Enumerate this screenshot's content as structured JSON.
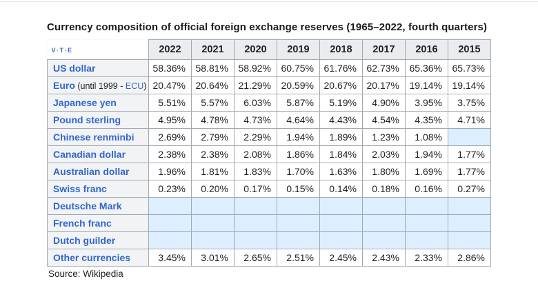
{
  "page": {
    "title": "Currency composition of official foreign exchange reserves (1965–2022, fourth quarters)",
    "source": "Source: Wikipedia"
  },
  "navbar": {
    "links": [
      "v",
      "t",
      "e"
    ],
    "separator": "·"
  },
  "colors": {
    "link_blue": "#3366cc",
    "header_bg": "#eaecf0",
    "row_label_bg": "#f1f3f5",
    "cell_bg": "#ffffff",
    "empty_cell_bg": "#ddeeff",
    "border": "#a2a9b1",
    "text": "#202122"
  },
  "chart_data": {
    "type": "table",
    "title": "Currency composition of official foreign exchange reserves (1965–2022, fourth quarters)",
    "columns": [
      "2022",
      "2021",
      "2020",
      "2019",
      "2018",
      "2017",
      "2016",
      "2015"
    ],
    "rows": [
      {
        "label": "US dollar",
        "values": [
          "58.36%",
          "58.81%",
          "58.92%",
          "60.75%",
          "61.76%",
          "62.73%",
          "65.36%",
          "65.73%"
        ]
      },
      {
        "label": "Euro",
        "suffix": [
          {
            "text": " (until 1999 - ",
            "link": false
          },
          {
            "text": "ECU",
            "link": true
          },
          {
            "text": ")",
            "link": false
          }
        ],
        "values": [
          "20.47%",
          "20.64%",
          "21.29%",
          "20.59%",
          "20.67%",
          "20.17%",
          "19.14%",
          "19.14%"
        ]
      },
      {
        "label": "Japanese yen",
        "values": [
          "5.51%",
          "5.57%",
          "6.03%",
          "5.87%",
          "5.19%",
          "4.90%",
          "3.95%",
          "3.75%"
        ]
      },
      {
        "label": "Pound sterling",
        "values": [
          "4.95%",
          "4.78%",
          "4.73%",
          "4.64%",
          "4.43%",
          "4.54%",
          "4.35%",
          "4.71%"
        ]
      },
      {
        "label": "Chinese renminbi",
        "values": [
          "2.69%",
          "2.79%",
          "2.29%",
          "1.94%",
          "1.89%",
          "1.23%",
          "1.08%",
          ""
        ]
      },
      {
        "label": "Canadian dollar",
        "values": [
          "2.38%",
          "2.38%",
          "2.08%",
          "1.86%",
          "1.84%",
          "2.03%",
          "1.94%",
          "1.77%"
        ]
      },
      {
        "label": "Australian dollar",
        "values": [
          "1.96%",
          "1.81%",
          "1.83%",
          "1.70%",
          "1.63%",
          "1.80%",
          "1.69%",
          "1.77%"
        ]
      },
      {
        "label": "Swiss franc",
        "values": [
          "0.23%",
          "0.20%",
          "0.17%",
          "0.15%",
          "0.14%",
          "0.18%",
          "0.16%",
          "0.27%"
        ]
      },
      {
        "label": "Deutsche Mark",
        "values": [
          "",
          "",
          "",
          "",
          "",
          "",
          "",
          ""
        ]
      },
      {
        "label": "French franc",
        "values": [
          "",
          "",
          "",
          "",
          "",
          "",
          "",
          ""
        ]
      },
      {
        "label": "Dutch guilder",
        "values": [
          "",
          "",
          "",
          "",
          "",
          "",
          "",
          ""
        ]
      },
      {
        "label": "Other currencies",
        "values": [
          "3.45%",
          "3.01%",
          "2.65%",
          "2.51%",
          "2.45%",
          "2.43%",
          "2.33%",
          "2.86%"
        ]
      }
    ]
  }
}
